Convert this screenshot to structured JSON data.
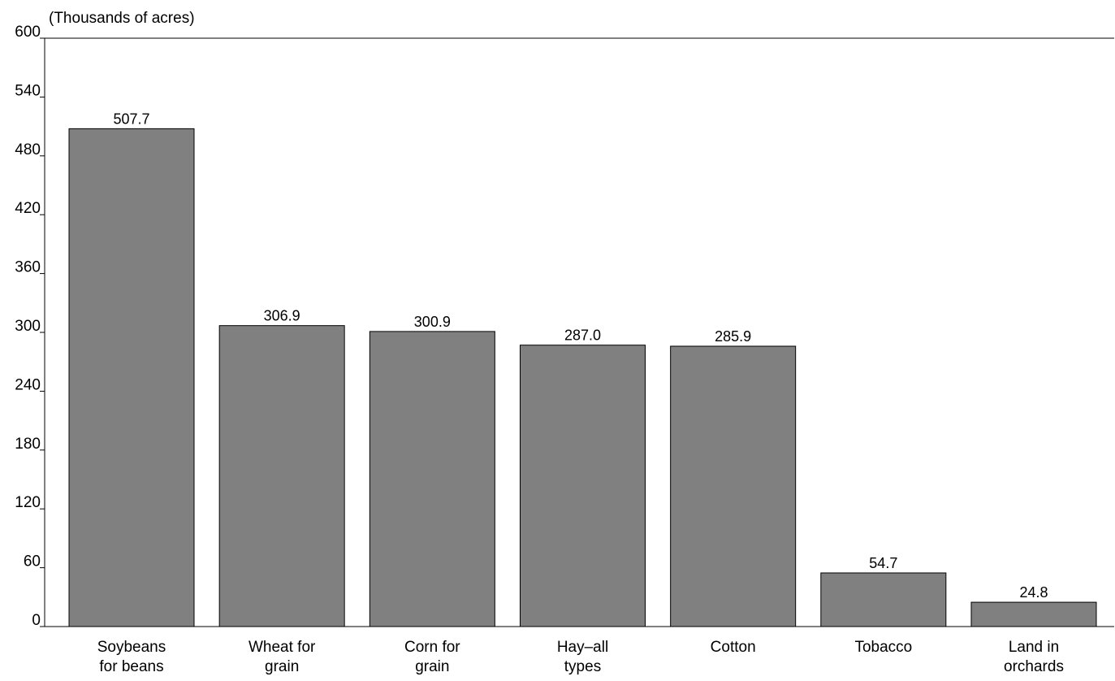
{
  "chart_data": {
    "type": "bar",
    "title": "",
    "ylabel": "(Thousands of acres)",
    "xlabel": "",
    "ylim": [
      0,
      600
    ],
    "yticks": [
      0,
      60,
      120,
      180,
      240,
      300,
      360,
      420,
      480,
      540,
      600
    ],
    "grid": false,
    "categories": [
      [
        "Soybeans",
        "for beans"
      ],
      [
        "Wheat for",
        "grain"
      ],
      [
        "Corn for",
        "grain"
      ],
      [
        "Hay–all",
        "types"
      ],
      [
        "Cotton"
      ],
      [
        "Tobacco"
      ],
      [
        "Land in",
        "orchards"
      ]
    ],
    "values": [
      507.7,
      306.9,
      300.9,
      287.0,
      285.9,
      54.7,
      24.8
    ],
    "value_labels": [
      "507.7",
      "306.9",
      "300.9",
      "287.0",
      "285.9",
      "54.7",
      "24.8"
    ],
    "bar_color": "#808080",
    "bar_edge_color": "#000000"
  }
}
